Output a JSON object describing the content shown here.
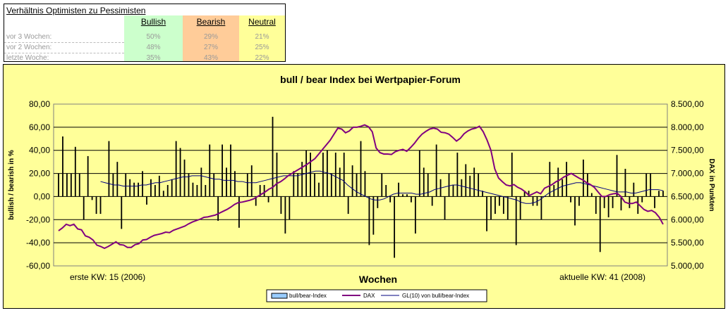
{
  "summary": {
    "title": "Verhältnis Optimisten zu Pessimisten",
    "headers": {
      "bullish": "Bullish",
      "bearish": "Bearish",
      "neutral": "Neutral"
    },
    "rows": [
      {
        "label": "vor 3 Wochen:",
        "bullish": "50%",
        "bearish": "29%",
        "neutral": "21%"
      },
      {
        "label": "vor 2 Wochen:",
        "bullish": "48%",
        "bearish": "27%",
        "neutral": "25%"
      },
      {
        "label": "letzte Woche:",
        "bullish": "35%",
        "bearish": "43%",
        "neutral": "22%"
      }
    ],
    "colors": {
      "bullish": "#ccffcc",
      "bearish": "#ffcc99",
      "neutral": "#ffff99"
    }
  },
  "chart_data": {
    "type": "bar",
    "title": "bull / bear Index bei Wertpapier-Forum",
    "xlabel": "Wochen",
    "ylabel_left": "bullish / bearish in %",
    "ylabel_right": "DAX in Punkten",
    "note_left": "erste KW: 15 (2006)",
    "note_right": "aktuelle KW: 41 (2008)",
    "y_left_ticks": [
      "80,00",
      "60,00",
      "40,00",
      "20,00",
      "0,00",
      "-20,00",
      "-40,00",
      "-60,00"
    ],
    "y_right_ticks": [
      "8.500,00",
      "8.000,00",
      "7.500,00",
      "7.000,00",
      "6.500,00",
      "6.000,00",
      "5.500,00",
      "5.000,00"
    ],
    "ylim_left": [
      -60,
      80
    ],
    "ylim_right": [
      5000,
      8500
    ],
    "grid": true,
    "legend_position": "bottom",
    "colors": {
      "plot_bg": "#ffff99",
      "bars": "#000000",
      "dax": "#800080",
      "ma": "#000080"
    },
    "series": [
      {
        "name": "bull/bear-Index",
        "kind": "bar",
        "values": [
          20,
          52,
          20,
          20,
          43,
          20,
          -20,
          35,
          -3,
          -15,
          -15,
          0,
          48,
          20,
          30,
          -28,
          20,
          15,
          12,
          12,
          22,
          -7,
          15,
          10,
          18,
          5,
          10,
          15,
          48,
          42,
          32,
          20,
          12,
          10,
          25,
          10,
          45,
          20,
          -21,
          45,
          25,
          45,
          22,
          -27,
          0,
          20,
          27,
          -8,
          10,
          10,
          -5,
          69,
          38,
          -15,
          -32,
          -20,
          22,
          20,
          30,
          40,
          38,
          20,
          12,
          38,
          40,
          20,
          38,
          25,
          38,
          -15,
          27,
          20,
          48,
          22,
          -42,
          -33,
          -10,
          20,
          10,
          -5,
          -53,
          12,
          2,
          2,
          -5,
          -32,
          40,
          25,
          20,
          -8,
          45,
          15,
          -20,
          20,
          10,
          38,
          15,
          28,
          18,
          25,
          20,
          5,
          -30,
          -20,
          -15,
          -8,
          -15,
          -20,
          38,
          -42,
          -20,
          5,
          5,
          -8,
          -8,
          -20,
          0,
          30,
          10,
          25,
          15,
          30,
          -5,
          -25,
          -8,
          32,
          20,
          3,
          -15,
          -48,
          -10,
          -18,
          -10,
          36,
          -12,
          24,
          -10,
          12,
          -15,
          -5,
          20,
          20,
          -10,
          5,
          5
        ]
      },
      {
        "name": "DAX",
        "kind": "line",
        "values": [
          5760,
          5820,
          5900,
          5870,
          5900,
          5800,
          5780,
          5650,
          5620,
          5560,
          5450,
          5420,
          5380,
          5420,
          5470,
          5520,
          5460,
          5450,
          5400,
          5400,
          5460,
          5480,
          5560,
          5570,
          5620,
          5660,
          5680,
          5700,
          5730,
          5720,
          5770,
          5800,
          5830,
          5860,
          5910,
          5950,
          5980,
          6010,
          6050,
          6060,
          6080,
          6100,
          6140,
          6180,
          6220,
          6270,
          6330,
          6370,
          6380,
          6400,
          6420,
          6450,
          6500,
          6550,
          6600,
          6660,
          6700,
          6780,
          6820,
          6880,
          6950,
          7000,
          7050,
          7100,
          7150,
          7200,
          7260,
          7320,
          7420,
          7520,
          7620,
          7720,
          7850,
          7980,
          7960,
          7880,
          7920,
          8000,
          8000,
          8020,
          8050,
          8010,
          7900,
          7550,
          7450,
          7420,
          7420,
          7410,
          7470,
          7500,
          7520,
          7480,
          7560,
          7650,
          7760,
          7850,
          7910,
          7960,
          7980,
          7960,
          7890,
          7880,
          7850,
          7780,
          7700,
          7760,
          7860,
          7920,
          7960,
          7980,
          8020,
          7900,
          7720,
          7500,
          7100,
          6900,
          6820,
          6750,
          6730,
          6760,
          6700,
          6660,
          6600,
          6520,
          6560,
          6600,
          6560,
          6680,
          6720,
          6760,
          6820,
          6860,
          6920,
          6960,
          7000,
          6950,
          6900,
          6860,
          6800,
          6760,
          6700,
          6600,
          6500,
          6500,
          6540,
          6560,
          6570,
          6500,
          6380,
          6350,
          6350,
          6380,
          6300,
          6220,
          6180,
          6200,
          6150,
          6050,
          5900
        ]
      },
      {
        "name": "GL(10) von bull/bear-Index",
        "kind": "line",
        "start_index": 10,
        "values": [
          13,
          12,
          11,
          10,
          10,
          9,
          9,
          9,
          9,
          10,
          10,
          11,
          12,
          12,
          13,
          14,
          15,
          16,
          17,
          17,
          18,
          18,
          18,
          17,
          16,
          15,
          15,
          14,
          14,
          14,
          13,
          13,
          12,
          12,
          12,
          13,
          14,
          15,
          16,
          17,
          18,
          18,
          18,
          18,
          19,
          20,
          21,
          22,
          22,
          21,
          20,
          18,
          16,
          14,
          10,
          7,
          4,
          2,
          0,
          -2,
          -3,
          -3,
          -2,
          0,
          2,
          3,
          3,
          3,
          3,
          2,
          2,
          3,
          4,
          6,
          7,
          8,
          9,
          10,
          10,
          9,
          8,
          7,
          6,
          5,
          4,
          3,
          2,
          1,
          0,
          -1,
          -2,
          -3,
          -5,
          -6,
          -6,
          -5,
          -3,
          0,
          3,
          5,
          7,
          9,
          10,
          11,
          12,
          12,
          11,
          10,
          9,
          8,
          7,
          6,
          5,
          4,
          4,
          4,
          3,
          3,
          4,
          5,
          6,
          6,
          6,
          5
        ]
      }
    ]
  }
}
